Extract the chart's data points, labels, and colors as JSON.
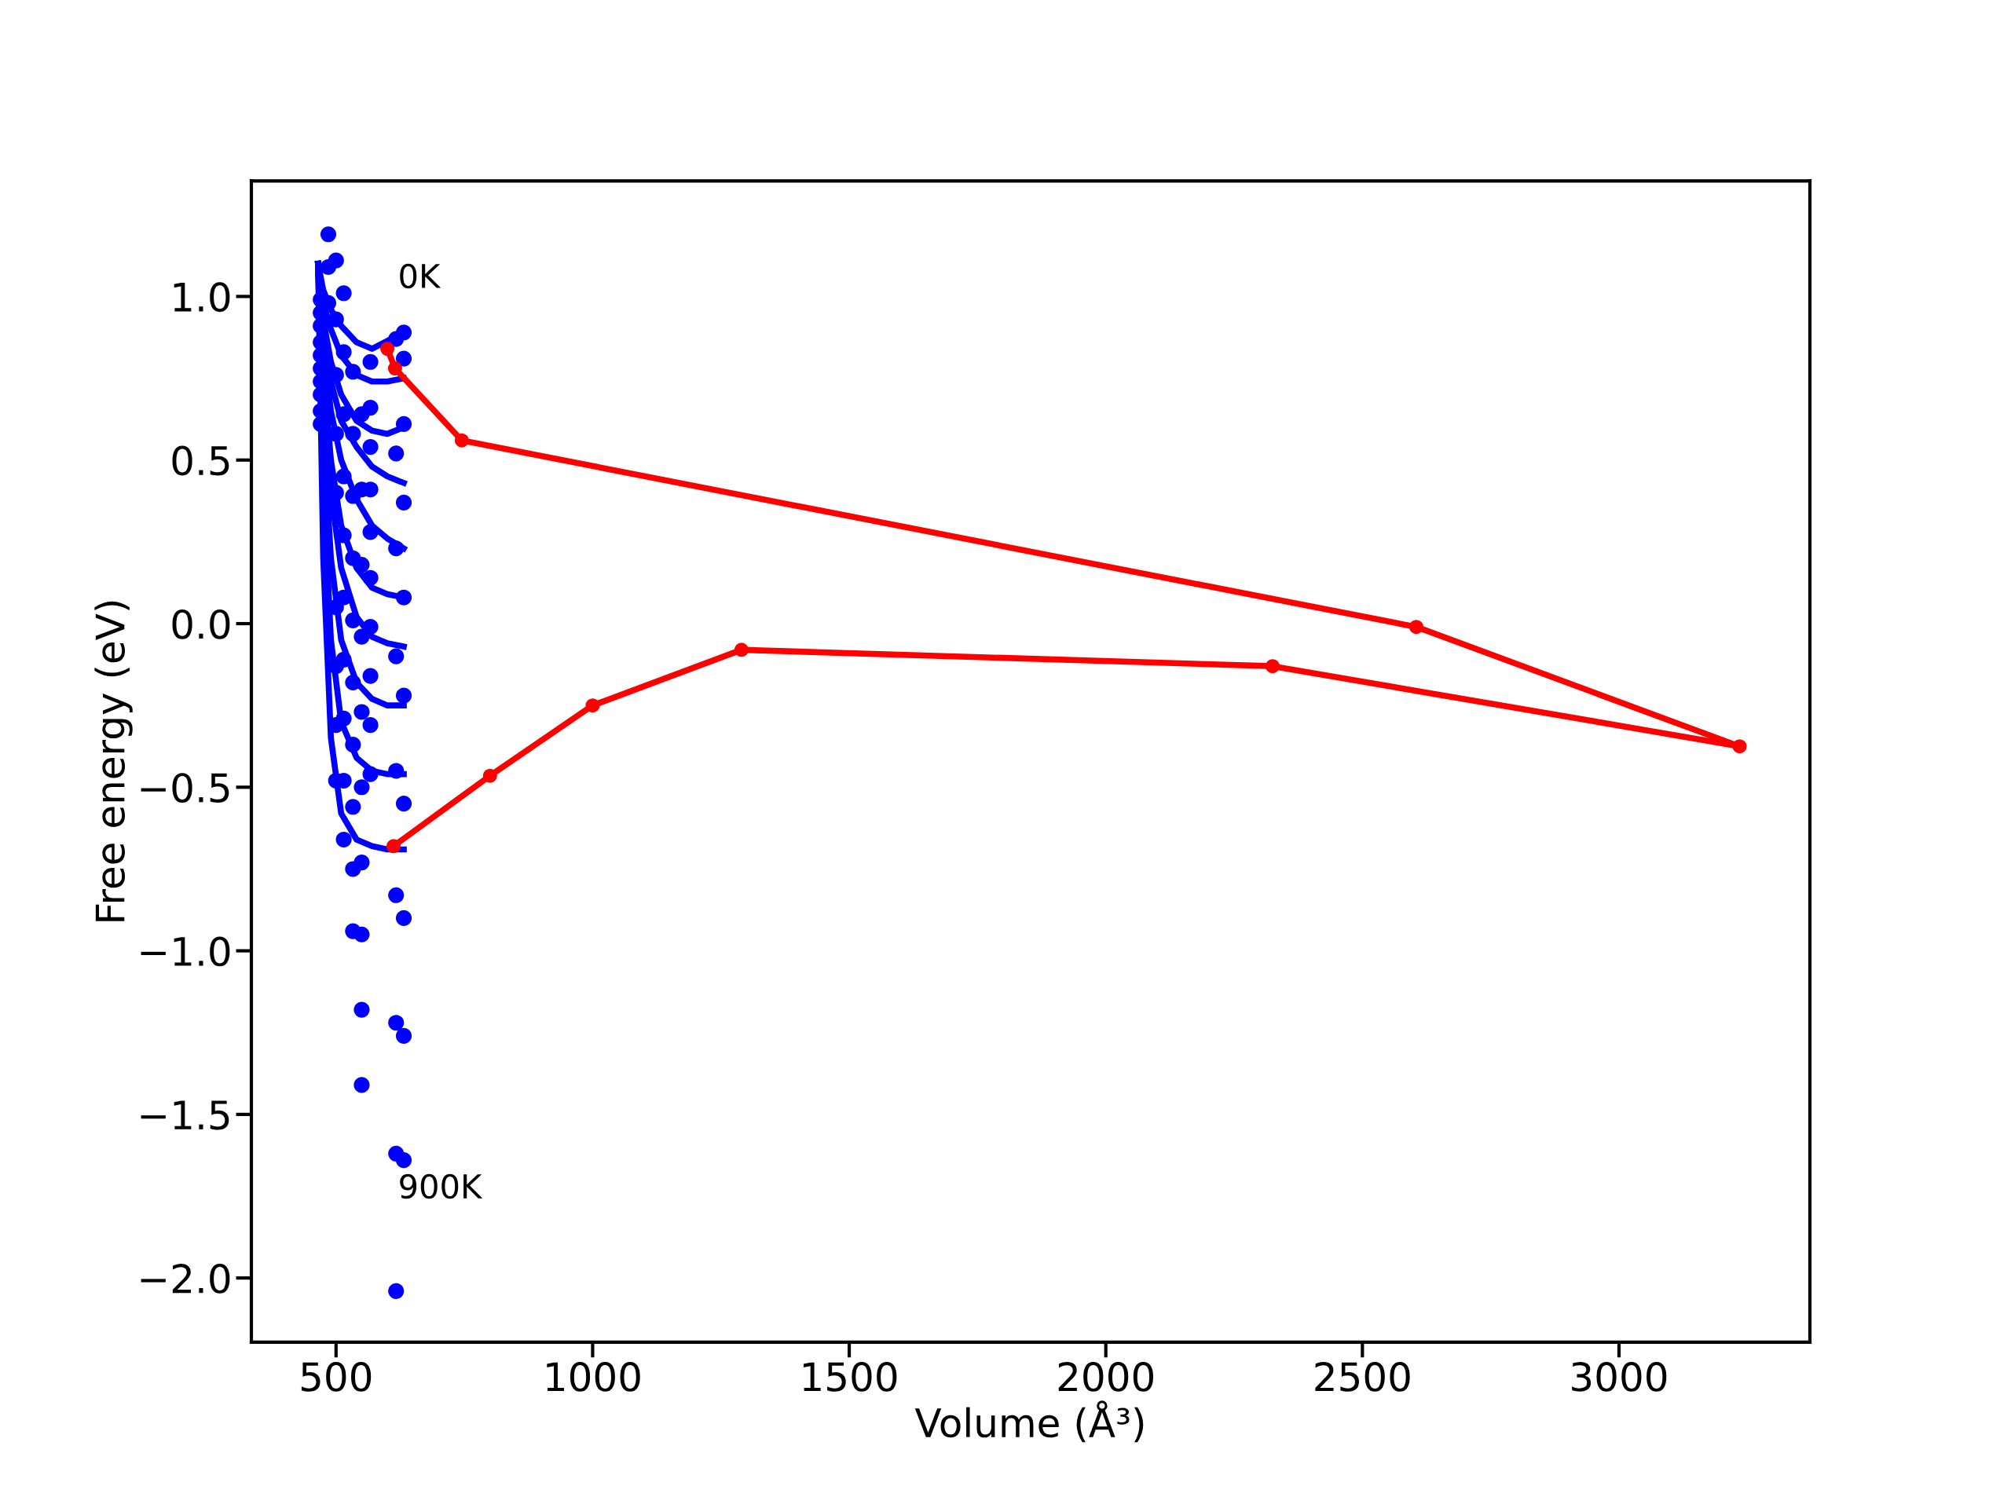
{
  "chart_data": {
    "type": "scatter",
    "xlabel": "Volume (Å³)",
    "ylabel": "Free energy (eV)",
    "xlim": [
      335,
      3372
    ],
    "ylim": [
      -2.196,
      1.353
    ],
    "xticks": [
      500,
      1000,
      1500,
      2000,
      2500,
      3000
    ],
    "yticks": [
      {
        "value": -2.0,
        "label": "−2.0"
      },
      {
        "value": -1.5,
        "label": "−1.5"
      },
      {
        "value": -1.0,
        "label": "−1.0"
      },
      {
        "value": -0.5,
        "label": "−0.5"
      },
      {
        "value": 0.0,
        "label": "0.0"
      },
      {
        "value": 0.5,
        "label": "0.5"
      },
      {
        "value": 1.0,
        "label": "1.0"
      }
    ],
    "grid": false,
    "legend": false,
    "marker": "circle",
    "line_style": "solid",
    "annotations": [
      "0K",
      "900K"
    ],
    "series": [
      {
        "color": "#0000ff",
        "x": [
          470,
          470,
          470,
          470,
          470,
          470,
          470,
          470,
          470,
          470,
          485,
          485,
          485,
          500,
          500,
          500,
          500,
          500,
          500,
          500,
          500,
          500,
          515,
          515,
          515,
          515,
          515,
          515,
          515,
          515,
          515,
          515,
          533,
          533,
          533,
          533,
          533,
          533,
          533,
          533,
          533,
          533,
          550,
          550,
          550,
          550,
          550,
          550,
          550,
          550,
          550,
          550,
          567,
          567,
          567,
          567,
          567,
          567,
          567,
          567,
          567,
          567,
          617,
          617,
          617,
          617,
          617,
          617,
          617,
          617,
          617,
          632,
          632,
          632,
          632,
          632,
          632,
          632,
          632,
          632,
          632
        ],
        "values": [
          0.99,
          0.95,
          0.91,
          0.86,
          0.82,
          0.78,
          0.74,
          0.7,
          0.65,
          0.61,
          1.19,
          1.09,
          0.98,
          1.11,
          0.93,
          0.76,
          0.58,
          0.4,
          0.05,
          -0.13,
          -0.31,
          -0.48,
          1.01,
          0.83,
          0.64,
          0.45,
          0.27,
          0.08,
          -0.11,
          -0.29,
          -0.48,
          -0.66,
          0.77,
          0.58,
          0.39,
          0.2,
          0.01,
          -0.18,
          -0.37,
          -0.56,
          -0.75,
          -0.94,
          0.64,
          0.41,
          0.18,
          -0.04,
          -0.27,
          -0.5,
          -0.73,
          -0.95,
          -1.18,
          -1.41,
          0.8,
          0.66,
          0.54,
          0.41,
          0.28,
          0.14,
          -0.01,
          -0.16,
          -0.31,
          -0.46,
          0.87,
          0.52,
          0.23,
          -0.1,
          -0.45,
          -0.83,
          -1.22,
          -1.62,
          -2.04,
          0.81,
          0.89,
          0.61,
          0.37,
          0.08,
          -0.22,
          -0.55,
          -0.9,
          -1.26,
          -1.64
        ]
      },
      {
        "type": "line",
        "marker": "none",
        "color": "#0000ff",
        "x": [
          465,
          475,
          490,
          510,
          540,
          570,
          632
        ],
        "values": [
          1.1,
          1.02,
          0.96,
          0.91,
          0.86,
          0.84,
          0.89
        ]
      },
      {
        "type": "line",
        "marker": "none",
        "color": "#0000ff",
        "x": [
          465,
          475,
          490,
          510,
          540,
          570,
          600,
          632
        ],
        "values": [
          1.1,
          0.98,
          0.9,
          0.82,
          0.76,
          0.74,
          0.74,
          0.75
        ]
      },
      {
        "type": "line",
        "marker": "none",
        "color": "#0000ff",
        "x": [
          465,
          475,
          490,
          510,
          540,
          570,
          600,
          632
        ],
        "values": [
          1.1,
          0.93,
          0.8,
          0.7,
          0.62,
          0.59,
          0.58,
          0.6
        ]
      },
      {
        "type": "line",
        "marker": "none",
        "color": "#0000ff",
        "x": [
          465,
          475,
          490,
          510,
          540,
          570,
          600,
          632
        ],
        "values": [
          1.1,
          0.9,
          0.74,
          0.62,
          0.54,
          0.48,
          0.45,
          0.43
        ]
      },
      {
        "type": "line",
        "marker": "none",
        "color": "#0000ff",
        "x": [
          465,
          475,
          490,
          510,
          540,
          570,
          600,
          632
        ],
        "values": [
          1.1,
          0.85,
          0.65,
          0.5,
          0.38,
          0.3,
          0.26,
          0.23
        ]
      },
      {
        "type": "line",
        "marker": "none",
        "color": "#0000ff",
        "x": [
          465,
          475,
          490,
          510,
          540,
          570,
          600,
          632
        ],
        "values": [
          1.1,
          0.78,
          0.5,
          0.3,
          0.17,
          0.11,
          0.09,
          0.08
        ]
      },
      {
        "type": "line",
        "marker": "none",
        "color": "#0000ff",
        "x": [
          465,
          475,
          490,
          510,
          540,
          570,
          600,
          632
        ],
        "values": [
          1.1,
          0.72,
          0.4,
          0.17,
          0.02,
          -0.04,
          -0.06,
          -0.07
        ]
      },
      {
        "type": "line",
        "marker": "none",
        "color": "#0000ff",
        "x": [
          465,
          475,
          490,
          510,
          540,
          570,
          600,
          632
        ],
        "values": [
          1.1,
          0.6,
          0.2,
          -0.05,
          -0.18,
          -0.23,
          -0.25,
          -0.25
        ]
      },
      {
        "type": "line",
        "marker": "none",
        "color": "#0000ff",
        "x": [
          465,
          475,
          490,
          510,
          540,
          570,
          600,
          632
        ],
        "values": [
          1.1,
          0.45,
          -0.05,
          -0.3,
          -0.41,
          -0.45,
          -0.46,
          -0.46
        ]
      },
      {
        "type": "line",
        "marker": "none",
        "color": "#0000ff",
        "x": [
          465,
          475,
          490,
          510,
          540,
          570,
          600,
          632
        ],
        "values": [
          1.1,
          0.2,
          -0.35,
          -0.58,
          -0.66,
          -0.68,
          -0.69,
          -0.69
        ]
      },
      {
        "type": "line",
        "marker": "circle",
        "color": "#ff0000",
        "x": [
          600,
          615,
          745,
          2605,
          3235,
          2325,
          1290,
          1000,
          800,
          612
        ],
        "values": [
          0.84,
          0.78,
          0.56,
          -0.01,
          -0.375,
          -0.13,
          -0.08,
          -0.25,
          -0.465,
          -0.68
        ]
      }
    ]
  }
}
